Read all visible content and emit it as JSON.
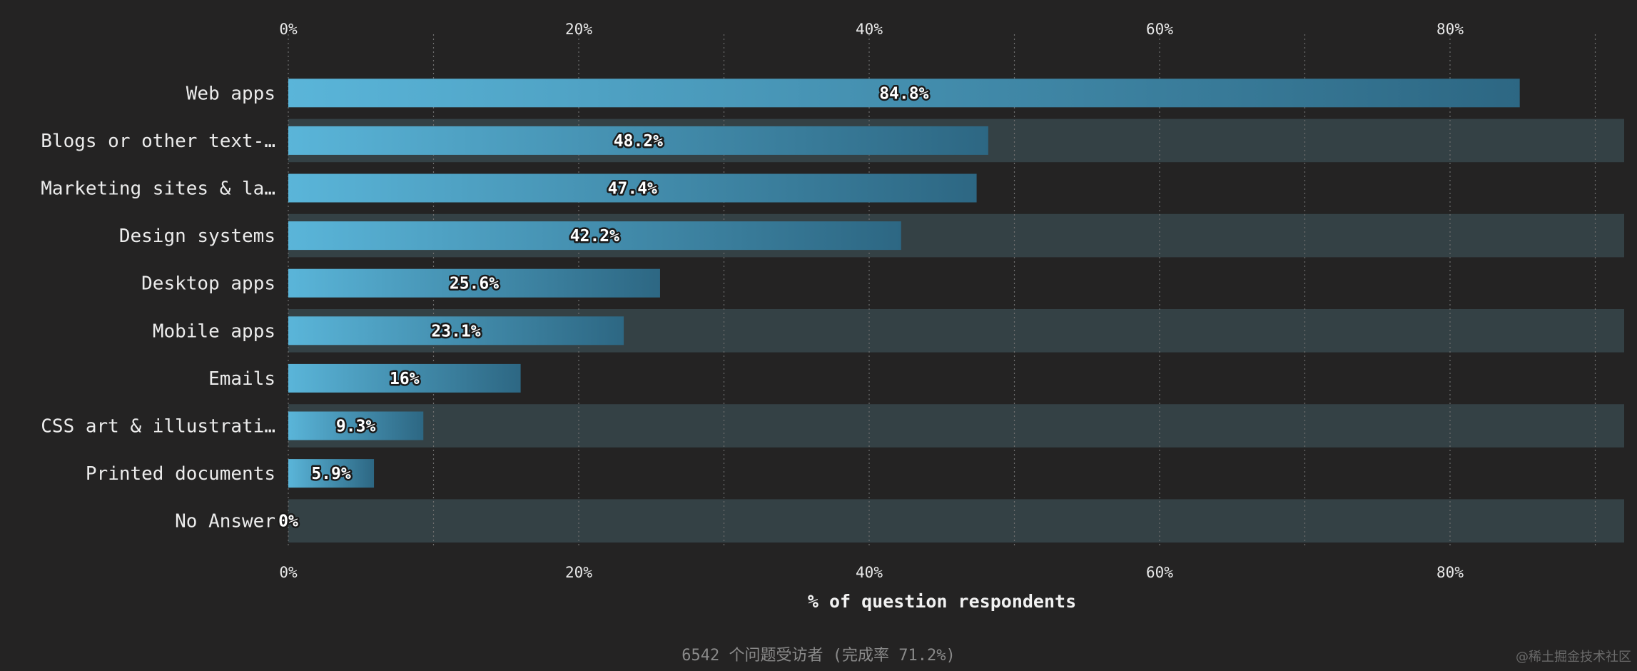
{
  "chart_data": {
    "type": "bar",
    "orientation": "horizontal",
    "categories": [
      "Web apps",
      "Blogs or other text-…",
      "Marketing sites & la…",
      "Design systems",
      "Desktop apps",
      "Mobile apps",
      "Emails",
      "CSS art & illustrati…",
      "Printed documents",
      "No Answer"
    ],
    "values": [
      84.8,
      48.2,
      47.4,
      42.2,
      25.6,
      23.1,
      16,
      9.3,
      5.9,
      0
    ],
    "value_labels": [
      "84.8%",
      "48.2%",
      "47.4%",
      "42.2%",
      "25.6%",
      "23.1%",
      "16%",
      "9.3%",
      "5.9%",
      "0%"
    ],
    "xlabel": "% of question respondents",
    "xlim": [
      0,
      92
    ],
    "x_ticks": [
      0,
      20,
      40,
      60,
      80
    ],
    "x_tick_labels": [
      "0%",
      "20%",
      "40%",
      "60%",
      "80%"
    ],
    "x_minor_gridlines": [
      10,
      20,
      30,
      40,
      50,
      60,
      70,
      80,
      90
    ],
    "grid": true,
    "ticks_on": [
      "top",
      "bottom"
    ]
  },
  "footer": {
    "note": "6542 个问题受访者 (完成率 71.2%)"
  },
  "watermark": {
    "text": "@稀土掘金技术社区"
  },
  "colors": {
    "background": "#242323",
    "bar_start": "#5ab5d9",
    "bar_end": "#2d6783",
    "band": "#344145",
    "gridline": "#6f6f6f"
  }
}
